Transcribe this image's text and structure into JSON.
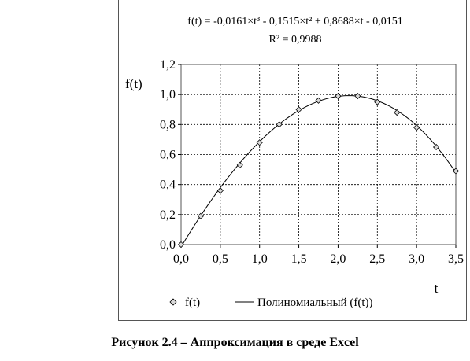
{
  "chart_data": {
    "type": "scatter",
    "equation": "f(t) = -0,0161×t³ - 0,1515×t² + 0,8688×t - 0,0151",
    "r_squared": "R² = 0,9988",
    "xlabel": "t",
    "ylabel": "f(t)",
    "xlim": [
      0,
      3.5
    ],
    "ylim": [
      0,
      1.2
    ],
    "x_ticks": [
      "0,0",
      "0,5",
      "1,0",
      "1,5",
      "2,0",
      "2,5",
      "3,0",
      "3,5"
    ],
    "y_ticks": [
      "0,0",
      "0,2",
      "0,4",
      "0,6",
      "0,8",
      "1,0",
      "1,2"
    ],
    "grid": true,
    "legend_position": "bottom",
    "series": [
      {
        "name": "f(t)",
        "kind": "markers",
        "marker": "diamond",
        "x": [
          0,
          0.25,
          0.5,
          0.75,
          1.0,
          1.25,
          1.5,
          1.75,
          2.0,
          2.25,
          2.5,
          2.75,
          3.0,
          3.25,
          3.5
        ],
        "y": [
          0,
          0.19,
          0.36,
          0.53,
          0.68,
          0.8,
          0.9,
          0.96,
          0.99,
          0.99,
          0.95,
          0.88,
          0.78,
          0.65,
          0.49
        ]
      },
      {
        "name": "Полиномиальный (f(t))",
        "kind": "trendline",
        "coefficients": {
          "a3": -0.0161,
          "a2": -0.1515,
          "a1": 0.8688,
          "a0": -0.0151
        }
      }
    ],
    "colors": {
      "line": "#000000",
      "marker_fill": "#d9d9d9",
      "grid": "#000000"
    }
  },
  "caption": "Рисунок 2.4 – Аппроксимация  в среде Excel"
}
